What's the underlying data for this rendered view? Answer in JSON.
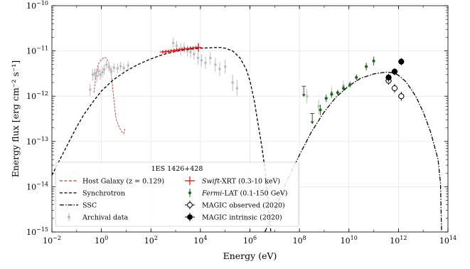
{
  "chart_data": {
    "type": "scatter",
    "xlabel": "Energy (eV)",
    "ylabel": "Energy flux [erg cm⁻² s⁻¹]",
    "x_scale": "log",
    "y_scale": "log",
    "xlim": [
      0.01,
      100000000000000.0
    ],
    "ylim": [
      1e-15,
      1e-10
    ],
    "grid": true,
    "legend_title": "1ES 1426+428",
    "legend_position": "bottom-left",
    "x_ticks": [
      {
        "value": 0.01,
        "base": "10",
        "exp": "−2"
      },
      {
        "value": 1,
        "base": "10",
        "exp": "0"
      },
      {
        "value": 100,
        "base": "10",
        "exp": "2"
      },
      {
        "value": 10000,
        "base": "10",
        "exp": "4"
      },
      {
        "value": 1000000.0,
        "base": "10",
        "exp": "6"
      },
      {
        "value": 100000000.0,
        "base": "10",
        "exp": "8"
      },
      {
        "value": 10000000000.0,
        "base": "10",
        "exp": "10"
      },
      {
        "value": 1000000000000.0,
        "base": "10",
        "exp": "12"
      },
      {
        "value": 100000000000000.0,
        "base": "10",
        "exp": "14"
      }
    ],
    "y_ticks": [
      {
        "value": 1e-15,
        "base": "10",
        "exp": "−15"
      },
      {
        "value": 1e-14,
        "base": "10",
        "exp": "−14"
      },
      {
        "value": 1e-13,
        "base": "10",
        "exp": "−13"
      },
      {
        "value": 1e-12,
        "base": "10",
        "exp": "−12"
      },
      {
        "value": 1e-11,
        "base": "10",
        "exp": "−11"
      },
      {
        "value": 1e-10,
        "base": "10",
        "exp": "−10"
      }
    ],
    "colors": {
      "host_galaxy": "#c0392b",
      "synchrotron": "#000000",
      "ssc": "#000000",
      "archival": "#bbbbbb",
      "swift": "#e8141b",
      "fermi": "#1a6b1a",
      "magic_observed": "#000000",
      "magic_intrinsic": "#000000"
    },
    "series": [
      {
        "name": "Host Galaxy (z = 0.129)",
        "kind": "line",
        "style": "dashed",
        "points": [
          [
            0.5,
            1.2e-12
          ],
          [
            0.6,
            3e-12
          ],
          [
            0.7,
            4.5e-12
          ],
          [
            0.8,
            5.5e-12
          ],
          [
            1,
            6.5e-12
          ],
          [
            1.3,
            7.2e-12
          ],
          [
            1.6,
            7e-12
          ],
          [
            2,
            5.5e-12
          ],
          [
            2.5,
            3e-12
          ],
          [
            3,
            1.2e-12
          ],
          [
            3.5,
            5e-13
          ],
          [
            4,
            3e-13
          ],
          [
            5,
            2.2e-13
          ],
          [
            6,
            1.8e-13
          ],
          [
            7,
            1.6e-13
          ],
          [
            8,
            1.5e-13
          ],
          [
            9,
            1.9e-13
          ]
        ]
      },
      {
        "name": "Synchrotron",
        "kind": "line",
        "style": "dashed",
        "points": [
          [
            0.01,
            1.8e-14
          ],
          [
            0.02,
            3.8e-14
          ],
          [
            0.05,
            1e-13
          ],
          [
            0.1,
            2.1e-13
          ],
          [
            0.2,
            4e-13
          ],
          [
            0.5,
            8e-13
          ],
          [
            1,
            1.3e-12
          ],
          [
            3,
            2.3e-12
          ],
          [
            10,
            3.6e-12
          ],
          [
            30,
            5e-12
          ],
          [
            100,
            6.7e-12
          ],
          [
            300,
            8.3e-12
          ],
          [
            1000,
            9.8e-12
          ],
          [
            3000,
            1.08e-11
          ],
          [
            10000,
            1.15e-11
          ],
          [
            30000,
            1.18e-11
          ],
          [
            60000,
            1.2e-11
          ],
          [
            100000,
            1.15e-11
          ],
          [
            200000,
            1e-11
          ],
          [
            400000,
            7e-12
          ],
          [
            700000,
            4e-12
          ],
          [
            1000000.0,
            2.2e-12
          ],
          [
            1500000.0,
            8e-13
          ],
          [
            2000000.0,
            3e-13
          ],
          [
            3000000.0,
            8e-14
          ],
          [
            4000000.0,
            2.5e-14
          ],
          [
            5000000.0,
            8e-15
          ],
          [
            6000000.0,
            2.5e-15
          ],
          [
            7000000.0,
            1e-15
          ]
        ]
      },
      {
        "name": "SSC",
        "kind": "line",
        "style": "dashdot",
        "points": [
          [
            4000000.0,
            1e-15
          ],
          [
            10000000.0,
            3e-15
          ],
          [
            30000000.0,
            1.3e-14
          ],
          [
            100000000.0,
            5e-14
          ],
          [
            300000000.0,
            1.6e-13
          ],
          [
            1000000000.0,
            4.5e-13
          ],
          [
            3000000000.0,
            9.5e-13
          ],
          [
            10000000000.0,
            1.7e-12
          ],
          [
            30000000000.0,
            2.5e-12
          ],
          [
            100000000000.0,
            3.1e-12
          ],
          [
            300000000000.0,
            3.4e-12
          ],
          [
            600000000000.0,
            3.3e-12
          ],
          [
            1000000000000.0,
            2.9e-12
          ],
          [
            2000000000000.0,
            2.1e-12
          ],
          [
            5000000000000.0,
            1e-12
          ],
          [
            10000000000000.0,
            4.5e-13
          ],
          [
            20000000000000.0,
            1.6e-13
          ],
          [
            40000000000000.0,
            4e-14
          ],
          [
            50000000000000.0,
            1.2e-14
          ],
          [
            55000000000000.0,
            1e-15
          ]
        ]
      },
      {
        "name": "Archival data",
        "kind": "errorbar",
        "points": [
          {
            "x": 0.35,
            "y": 1.4e-12,
            "ylo": 1e-12,
            "yhi": 1.9e-12
          },
          {
            "x": 0.45,
            "y": 3e-12,
            "ylo": 2.2e-12,
            "yhi": 4e-12
          },
          {
            "x": 0.55,
            "y": 3.2e-12,
            "ylo": 2.4e-12,
            "yhi": 4.2e-12
          },
          {
            "x": 0.65,
            "y": 2.8e-12,
            "ylo": 2e-12,
            "yhi": 3.8e-12
          },
          {
            "x": 0.75,
            "y": 3.6e-12,
            "ylo": 2.7e-12,
            "yhi": 4.8e-12
          },
          {
            "x": 0.9,
            "y": 3e-12,
            "ylo": 2.3e-12,
            "yhi": 4e-12
          },
          {
            "x": 1.1,
            "y": 3.4e-12,
            "ylo": 2.6e-12,
            "yhi": 4.5e-12
          },
          {
            "x": 1.3,
            "y": 3.9e-12,
            "ylo": 3e-12,
            "yhi": 5e-12
          },
          {
            "x": 1.6,
            "y": 5e-12,
            "ylo": 4e-12,
            "yhi": 6.2e-12
          },
          {
            "x": 2,
            "y": 4.4e-12,
            "ylo": 3.5e-12,
            "yhi": 5.5e-12
          },
          {
            "x": 2.5,
            "y": 3.5e-12,
            "ylo": 2.7e-12,
            "yhi": 4.5e-12
          },
          {
            "x": 3.2,
            "y": 4.3e-12,
            "ylo": 3.4e-12,
            "yhi": 5.4e-12
          },
          {
            "x": 4.5,
            "y": 4.1e-12,
            "ylo": 3.2e-12,
            "yhi": 5.2e-12
          },
          {
            "x": 6,
            "y": 4.6e-12,
            "ylo": 3.7e-12,
            "yhi": 5.8e-12
          },
          {
            "x": 8,
            "y": 4.2e-12,
            "ylo": 3.4e-12,
            "yhi": 5.3e-12
          },
          {
            "x": 12,
            "y": 4.8e-12,
            "ylo": 3.9e-12,
            "yhi": 6e-12
          },
          {
            "x": 800,
            "y": 1.5e-11,
            "ylo": 1.2e-11,
            "yhi": 1.95e-11
          },
          {
            "x": 1100,
            "y": 1.3e-11,
            "ylo": 1.05e-11,
            "yhi": 1.65e-11
          },
          {
            "x": 1600,
            "y": 1.1e-11,
            "ylo": 8e-12,
            "yhi": 1.5e-11
          },
          {
            "x": 2200,
            "y": 1.2e-11,
            "ylo": 9e-12,
            "yhi": 1.55e-11
          },
          {
            "x": 3000,
            "y": 1e-11,
            "ylo": 7.5e-12,
            "yhi": 1.35e-11
          },
          {
            "x": 4000,
            "y": 9.5e-12,
            "ylo": 7e-12,
            "yhi": 1.3e-11
          },
          {
            "x": 5500,
            "y": 8.5e-12,
            "ylo": 6.3e-12,
            "yhi": 1.15e-11
          },
          {
            "x": 8000,
            "y": 7e-12,
            "ylo": 5e-12,
            "yhi": 9.8e-12
          },
          {
            "x": 11000,
            "y": 6.2e-12,
            "ylo": 4.5e-12,
            "yhi": 8.5e-12
          },
          {
            "x": 16000,
            "y": 5.5e-12,
            "ylo": 4e-12,
            "yhi": 7.5e-12
          },
          {
            "x": 25000,
            "y": 7e-12,
            "ylo": 5e-12,
            "yhi": 9.5e-12
          },
          {
            "x": 40000,
            "y": 5e-12,
            "ylo": 3.5e-12,
            "yhi": 7e-12
          },
          {
            "x": 60000,
            "y": 4e-12,
            "ylo": 2.8e-12,
            "yhi": 5.7e-12
          },
          {
            "x": 100000,
            "y": 4.5e-12,
            "ylo": 3.2e-12,
            "yhi": 6.3e-12
          },
          {
            "x": 200000,
            "y": 2e-12,
            "ylo": 1.3e-12,
            "yhi": 3e-12
          },
          {
            "x": 300000,
            "y": 1.5e-12,
            "ylo": 1e-12,
            "yhi": 2.3e-12
          },
          {
            "x": 200000000.0,
            "y": 1e-12,
            "ylo": 7e-13,
            "yhi": 1.45e-12
          },
          {
            "x": 600000000.0,
            "y": 6e-13,
            "ylo": 4e-13,
            "yhi": 8.5e-13
          },
          {
            "x": 2000000000.0,
            "y": 1.2e-12,
            "ylo": 9e-13,
            "yhi": 1.6e-12
          },
          {
            "x": 6000000000.0,
            "y": 1.7e-12,
            "ylo": 1.3e-12,
            "yhi": 2.2e-12
          }
        ]
      },
      {
        "name": "Swift-XRT (0.3-10 keV)",
        "name_italic": "Swift",
        "name_rest": "-XRT (0.3-10 keV)",
        "kind": "cross",
        "points": [
          [
            300,
            9.5e-12
          ],
          [
            400,
            9.7e-12
          ],
          [
            500,
            9.8e-12
          ],
          [
            650,
            1e-11
          ],
          [
            850,
            1.02e-11
          ],
          [
            1100,
            1.05e-11
          ],
          [
            1400,
            1.07e-11
          ],
          [
            1800,
            1.08e-11
          ],
          [
            2300,
            1.1e-11
          ],
          [
            3000,
            1.12e-11
          ],
          [
            3900,
            1.14e-11
          ],
          [
            5000,
            1.16e-11
          ],
          [
            6500,
            1.18e-11
          ],
          [
            8300,
            1.2e-11
          ]
        ]
      },
      {
        "name": "Fermi-LAT (0.1-150 GeV)",
        "name_italic": "Fermi",
        "name_rest": "-LAT (0.1-150 GeV)",
        "kind": "errorbar",
        "points": [
          {
            "x": 150000000.0,
            "y": 1e-12,
            "upper_limit": true
          },
          {
            "x": 330000000.0,
            "y": 2.5e-13,
            "upper_limit": true
          },
          {
            "x": 700000000.0,
            "y": 5e-13,
            "ylo": 3.8e-13,
            "yhi": 6.5e-13
          },
          {
            "x": 1200000000.0,
            "y": 9e-13,
            "ylo": 7.5e-13,
            "yhi": 1.08e-12
          },
          {
            "x": 2000000000.0,
            "y": 1.1e-12,
            "ylo": 9.5e-13,
            "yhi": 1.28e-12
          },
          {
            "x": 3500000000.0,
            "y": 1.2e-12,
            "ylo": 1.05e-12,
            "yhi": 1.38e-12
          },
          {
            "x": 6000000000.0,
            "y": 1.5e-12,
            "ylo": 1.3e-12,
            "yhi": 1.75e-12
          },
          {
            "x": 11000000000.0,
            "y": 1.8e-12,
            "ylo": 1.55e-12,
            "yhi": 2.1e-12
          },
          {
            "x": 20000000000.0,
            "y": 2.6e-12,
            "ylo": 2.2e-12,
            "yhi": 3.05e-12
          },
          {
            "x": 50000000000.0,
            "y": 4.5e-12,
            "ylo": 3.7e-12,
            "yhi": 5.5e-12
          },
          {
            "x": 100000000000.0,
            "y": 6e-12,
            "ylo": 4.8e-12,
            "yhi": 7.5e-12
          }
        ]
      },
      {
        "name": "MAGIC observed (2020)",
        "kind": "marker_open",
        "points": [
          {
            "x": 400000000000.0,
            "y": 2.2e-12,
            "ylo": 1.8e-12,
            "yhi": 2.6e-12,
            "xlo": 300000000000.0,
            "xhi": 530000000000.0
          },
          {
            "x": 700000000000.0,
            "y": 1.5e-12,
            "ylo": 1.2e-12,
            "yhi": 1.85e-12,
            "xlo": 530000000000.0,
            "xhi": 930000000000.0
          },
          {
            "x": 1300000000000.0,
            "y": 1e-12,
            "ylo": 8e-13,
            "yhi": 1.25e-12,
            "xlo": 980000000000.0,
            "xhi": 1700000000000.0
          }
        ]
      },
      {
        "name": "MAGIC intrinsic (2020)",
        "kind": "marker_filled",
        "points": [
          {
            "x": 400000000000.0,
            "y": 2.6e-12,
            "ylo": 2.1e-12,
            "yhi": 3.1e-12,
            "xlo": 300000000000.0,
            "xhi": 530000000000.0
          },
          {
            "x": 700000000000.0,
            "y": 3.5e-12,
            "ylo": 2.9e-12,
            "yhi": 4.1e-12,
            "xlo": 530000000000.0,
            "xhi": 930000000000.0
          },
          {
            "x": 1300000000000.0,
            "y": 5.8e-12,
            "ylo": 4.8e-12,
            "yhi": 6.9e-12,
            "xlo": 980000000000.0,
            "xhi": 1700000000000.0
          }
        ]
      }
    ]
  }
}
